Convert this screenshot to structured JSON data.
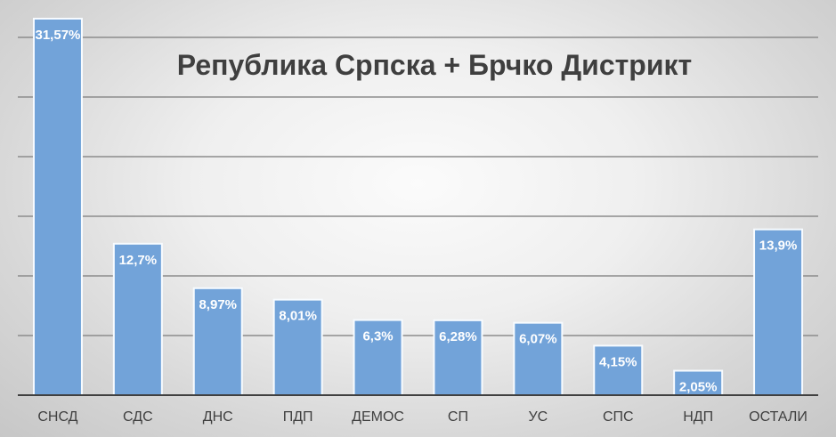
{
  "chart_data": {
    "type": "bar",
    "title": "Република Српска + Брчко Дистрикт",
    "categories": [
      "СНСД",
      "СДС",
      "ДНС",
      "ПДП",
      "ДЕМОС",
      "СП",
      "УС",
      "СПС",
      "НДП",
      "ОСТАЛИ"
    ],
    "values": [
      31.57,
      12.7,
      8.97,
      8.01,
      6.3,
      6.28,
      6.07,
      4.15,
      2.05,
      13.9
    ],
    "data_labels": [
      "31,57%",
      "12,7%",
      "8,97%",
      "8,01%",
      "6,3%",
      "6,28%",
      "6,07%",
      "4,15%",
      "2,05%",
      "13,9%"
    ],
    "ylim": [
      0,
      30
    ],
    "grid": true,
    "legend": "none",
    "colors": {
      "bar_fill": "#72a3d9",
      "bar_stroke": "#f7fbff",
      "gridline": "#8c8c8c",
      "axis": "#404040"
    }
  }
}
